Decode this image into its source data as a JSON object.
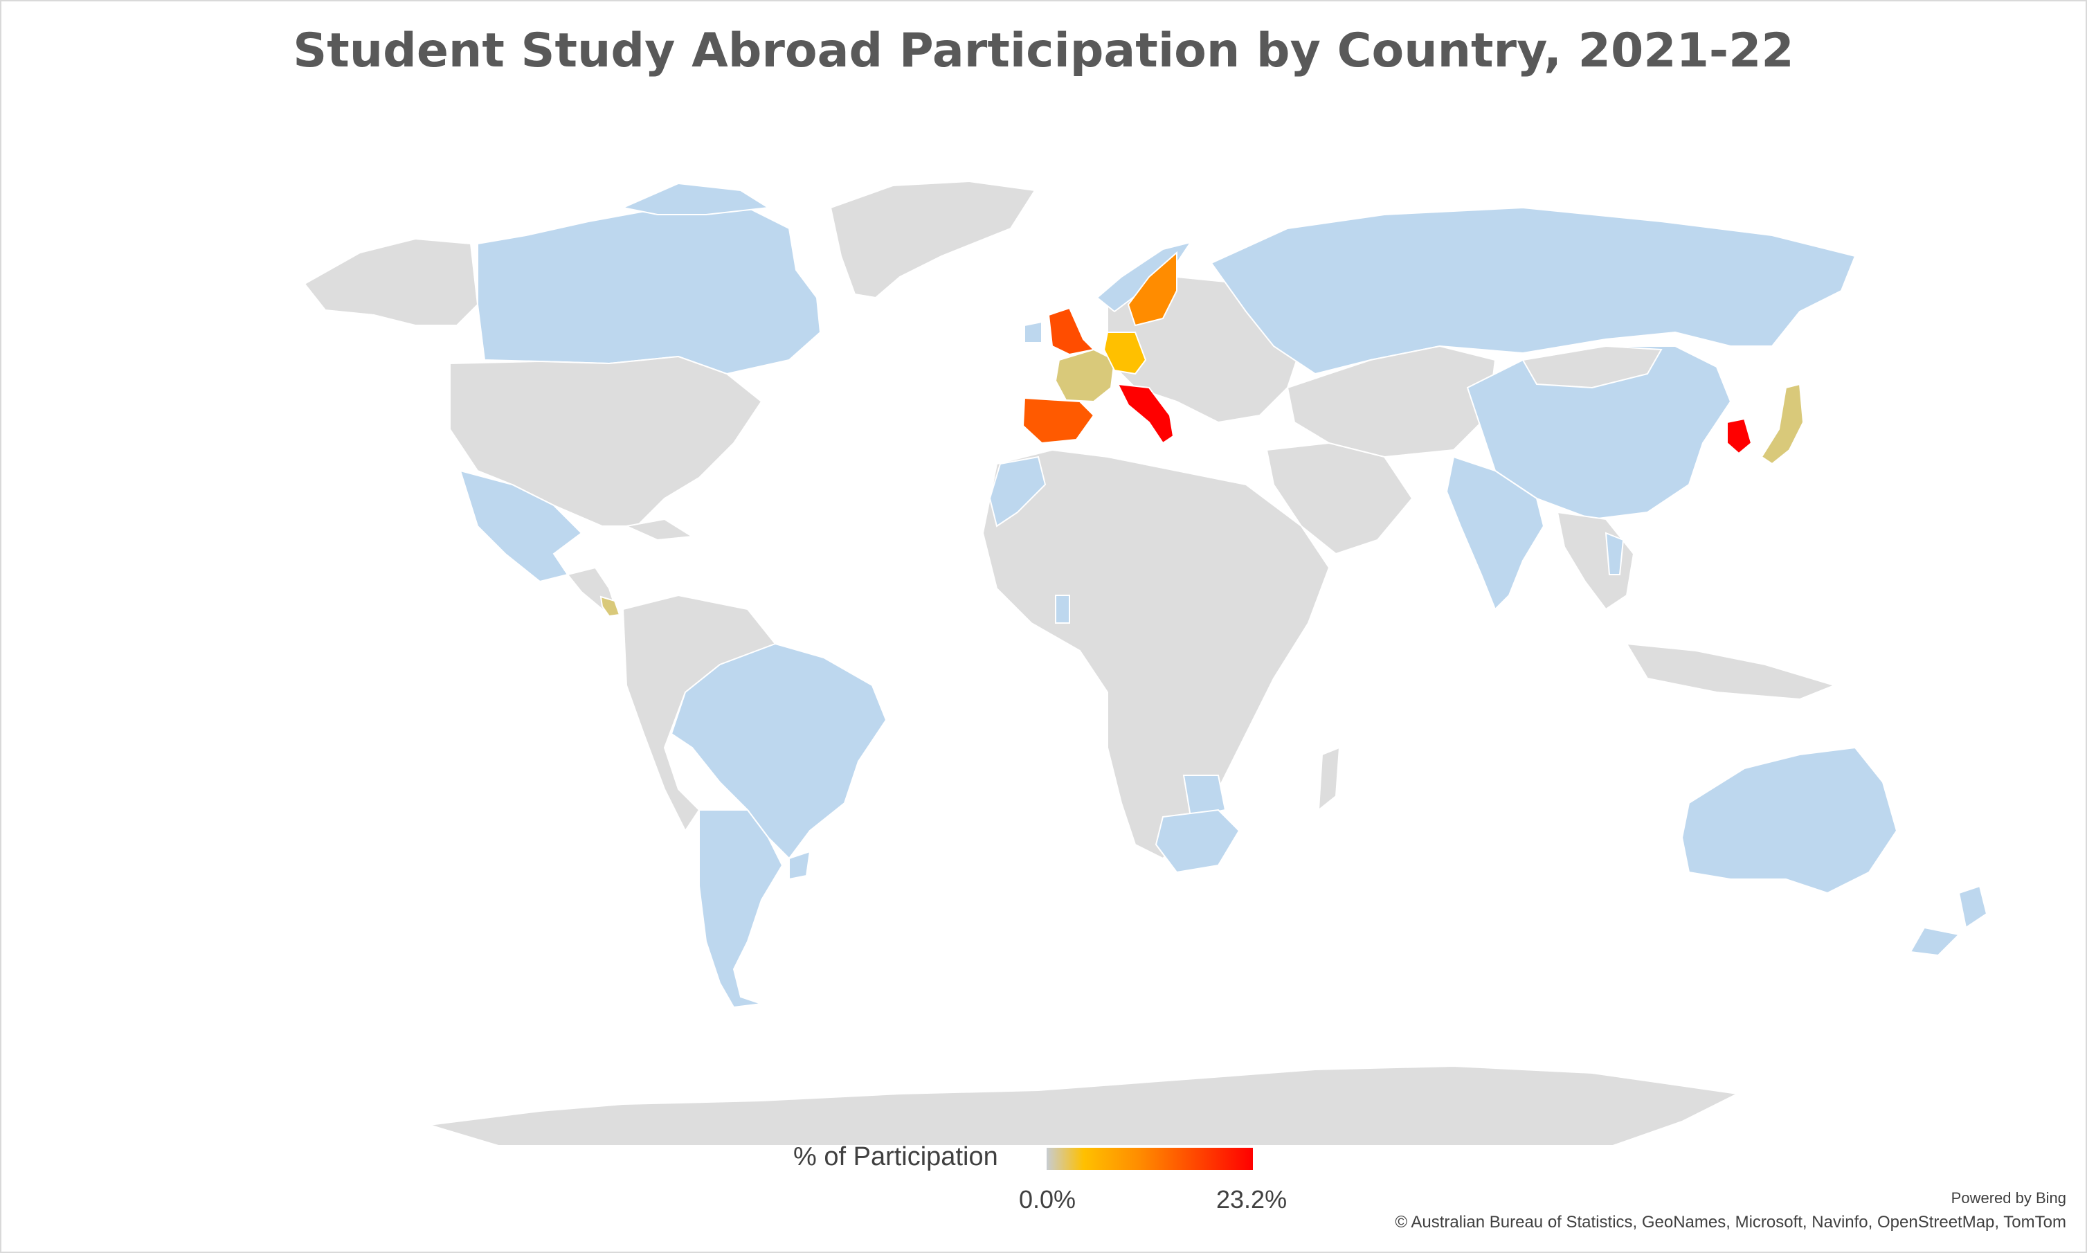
{
  "title": "Student Study Abroad Participation by Country, 2021-22",
  "legend": {
    "label": "% of Participation",
    "min_label": "0.0%",
    "max_label": "23.2%",
    "gradient_colors": [
      "#c7ccd2",
      "#ffc000",
      "#ff8c00",
      "#ff4d00",
      "#ff0000"
    ]
  },
  "attribution": {
    "powered_by": "Powered by Bing",
    "credits": "© Australian Bureau of Statistics, GeoNames, Microsoft, Navinfo, OpenStreetMap, TomTom"
  },
  "colors": {
    "no_data": "#dddddd",
    "low": "#bdd7ee",
    "background": "#ffffff"
  },
  "map_data": {
    "type": "choropleth",
    "measure": "% of Participation",
    "range": [
      0.0,
      23.2
    ],
    "regions": [
      {
        "name": "Italy",
        "color": "#ff0000"
      },
      {
        "name": "South Korea",
        "color": "#ff0000"
      },
      {
        "name": "United Kingdom",
        "color": "#ff4d00"
      },
      {
        "name": "Spain",
        "color": "#ff5a00"
      },
      {
        "name": "Sweden",
        "color": "#ff8c00"
      },
      {
        "name": "Germany",
        "color": "#ffc000"
      },
      {
        "name": "France",
        "color": "#d9c97a"
      },
      {
        "name": "Japan",
        "color": "#d9c97a"
      },
      {
        "name": "Costa Rica",
        "color": "#d9c97a"
      },
      {
        "name": "Canada",
        "color": "#bdd7ee"
      },
      {
        "name": "Mexico",
        "color": "#bdd7ee"
      },
      {
        "name": "Brazil",
        "color": "#bdd7ee"
      },
      {
        "name": "Argentina",
        "color": "#bdd7ee"
      },
      {
        "name": "Chile",
        "color": "#bdd7ee"
      },
      {
        "name": "Uruguay",
        "color": "#bdd7ee"
      },
      {
        "name": "Russia",
        "color": "#bdd7ee"
      },
      {
        "name": "China",
        "color": "#bdd7ee"
      },
      {
        "name": "India",
        "color": "#bdd7ee"
      },
      {
        "name": "Thailand",
        "color": "#bdd7ee"
      },
      {
        "name": "Australia",
        "color": "#bdd7ee"
      },
      {
        "name": "New Zealand",
        "color": "#bdd7ee"
      },
      {
        "name": "South Africa",
        "color": "#bdd7ee"
      },
      {
        "name": "Botswana",
        "color": "#bdd7ee"
      },
      {
        "name": "Ghana",
        "color": "#bdd7ee"
      },
      {
        "name": "Morocco",
        "color": "#bdd7ee"
      },
      {
        "name": "Ireland",
        "color": "#bdd7ee"
      },
      {
        "name": "Norway",
        "color": "#bdd7ee"
      },
      {
        "name": "Denmark",
        "color": "#bdd7ee"
      },
      {
        "name": "Israel",
        "color": "#bdd7ee"
      }
    ]
  }
}
